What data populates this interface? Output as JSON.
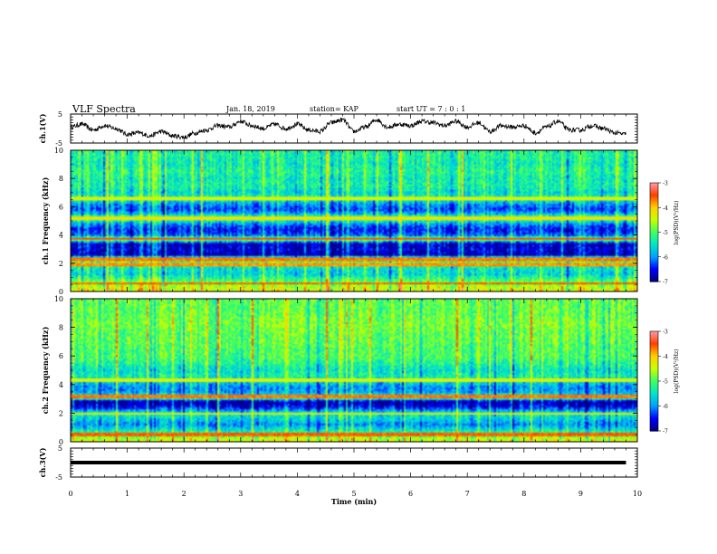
{
  "header": {
    "title": "VLF Spectra",
    "date": "Jan. 18, 2019",
    "station": "station= KAP",
    "start": "start UT =  7 : 0 : 1"
  },
  "colorbars": [
    {
      "label": "log(PSD)(V²/Hz)",
      "ticks": [
        {
          "label": "-3",
          "value": -3
        },
        {
          "label": "-4",
          "value": -4
        },
        {
          "label": "-5",
          "value": -5
        },
        {
          "label": "-6",
          "value": -6
        },
        {
          "label": "-7",
          "value": -7
        }
      ]
    },
    {
      "label": "log(PSD)(V²/Hz)",
      "ticks": [
        {
          "label": "-3",
          "value": -3
        },
        {
          "label": "-4",
          "value": -4
        },
        {
          "label": "-5",
          "value": -5
        },
        {
          "label": "-6",
          "value": -6
        },
        {
          "label": "-7",
          "value": -7
        }
      ]
    }
  ],
  "colors": {
    "colormap": [
      "#00007f",
      "#0000ff",
      "#00a0ff",
      "#00e5c8",
      "#40ff60",
      "#c8ff00",
      "#ffd000",
      "#ff4000",
      "#ff9aa8"
    ]
  },
  "chart_data": [
    {
      "type": "line",
      "panel": "ch1-waveform",
      "ylabel": "ch.1(V)",
      "ylim": [
        -5,
        5
      ],
      "yticks": [
        {
          "label": "5",
          "value": 5
        },
        {
          "label": "-5",
          "value": -5
        }
      ],
      "xlim": [
        0,
        10
      ],
      "series": [
        {
          "x": [
            0,
            0.2,
            0.4,
            0.6,
            0.8,
            1.0,
            1.2,
            1.4,
            1.6,
            1.8,
            2.0,
            2.2,
            2.4,
            2.6,
            2.8,
            3.0,
            3.2,
            3.4,
            3.6,
            3.8,
            4.0,
            4.2,
            4.4,
            4.6,
            4.8,
            5.0,
            5.2,
            5.4,
            5.6,
            5.8,
            6.0,
            6.2,
            6.4,
            6.6,
            6.8,
            7.0,
            7.2,
            7.4,
            7.6,
            7.8,
            8.0,
            8.2,
            8.4,
            8.6,
            8.8,
            9.0,
            9.2,
            9.4,
            9.6,
            9.8
          ],
          "y": [
            0.5,
            1.5,
            -0.5,
            1.0,
            0.0,
            -2.0,
            -1.5,
            -2.5,
            -1.0,
            -2.5,
            -3.0,
            -1.5,
            -0.5,
            1.0,
            0.5,
            2.5,
            1.0,
            0.0,
            1.5,
            0.0,
            1.5,
            -0.5,
            -1.0,
            2.0,
            3.0,
            -1.0,
            0.5,
            3.0,
            0.5,
            1.5,
            1.0,
            2.5,
            2.0,
            1.0,
            2.5,
            0.5,
            2.0,
            -1.0,
            1.0,
            0.5,
            1.0,
            -1.5,
            0.5,
            2.5,
            -0.5,
            -0.5,
            1.0,
            0.0,
            -1.5,
            -2.0
          ]
        }
      ]
    },
    {
      "type": "heatmap",
      "panel": "ch1-spectrogram",
      "ylabel": "ch.1 Frequency (kHz)",
      "ylim": [
        0,
        10
      ],
      "yticks": [
        {
          "label": "0",
          "value": 0
        },
        {
          "label": "2",
          "value": 2
        },
        {
          "label": "4",
          "value": 4
        },
        {
          "label": "6",
          "value": 6
        },
        {
          "label": "8",
          "value": 8
        },
        {
          "label": "10",
          "value": 10
        }
      ],
      "xlim": [
        0,
        10
      ],
      "zlim": [
        -7,
        -3
      ],
      "freq_levels": [
        {
          "f": 0.0,
          "z": -4.3
        },
        {
          "f": 0.4,
          "z": -4.6
        },
        {
          "f": 0.8,
          "z": -5.0
        },
        {
          "f": 1.2,
          "z": -5.6
        },
        {
          "f": 1.6,
          "z": -5.5
        },
        {
          "f": 2.0,
          "z": -5.2
        },
        {
          "f": 2.3,
          "z": -4.6
        },
        {
          "f": 2.6,
          "z": -6.8
        },
        {
          "f": 3.0,
          "z": -6.6
        },
        {
          "f": 3.4,
          "z": -6.8
        },
        {
          "f": 3.7,
          "z": -4.5
        },
        {
          "f": 4.0,
          "z": -6.2
        },
        {
          "f": 4.4,
          "z": -6.5
        },
        {
          "f": 4.8,
          "z": -6.0
        },
        {
          "f": 5.2,
          "z": -4.7
        },
        {
          "f": 5.5,
          "z": -5.8
        },
        {
          "f": 5.8,
          "z": -6.3
        },
        {
          "f": 6.2,
          "z": -6.0
        },
        {
          "f": 6.6,
          "z": -5.2
        },
        {
          "f": 7.0,
          "z": -5.6
        },
        {
          "f": 7.5,
          "z": -5.3
        },
        {
          "f": 8.0,
          "z": -5.4
        },
        {
          "f": 8.5,
          "z": -5.2
        },
        {
          "f": 9.0,
          "z": -5.4
        },
        {
          "f": 9.5,
          "z": -5.3
        },
        {
          "f": 10.0,
          "z": -5.3
        }
      ],
      "bands": [
        {
          "f": 0.55,
          "z": -3.6
        },
        {
          "f": 1.9,
          "z": -3.8
        },
        {
          "f": 2.3,
          "z": -3.7
        },
        {
          "f": 3.75,
          "z": -3.5
        },
        {
          "f": 5.2,
          "z": -4.2
        },
        {
          "f": 6.6,
          "z": -4.4
        }
      ],
      "events": [
        {
          "t": 0.65,
          "z": -4.0
        },
        {
          "t": 2.3,
          "z": -4.2
        },
        {
          "t": 4.5,
          "z": -3.9
        },
        {
          "t": 5.8,
          "z": -4.1
        },
        {
          "t": 6.3,
          "z": -3.8
        },
        {
          "t": 6.9,
          "z": -4.0
        }
      ]
    },
    {
      "type": "heatmap",
      "panel": "ch2-spectrogram",
      "ylabel": "ch.2 Frequency (kHz)",
      "ylim": [
        0,
        10
      ],
      "yticks": [
        {
          "label": "0",
          "value": 0
        },
        {
          "label": "2",
          "value": 2
        },
        {
          "label": "4",
          "value": 4
        },
        {
          "label": "6",
          "value": 6
        },
        {
          "label": "8",
          "value": 8
        },
        {
          "label": "10",
          "value": 10
        }
      ],
      "xlim": [
        0,
        10
      ],
      "zlim": [
        -7,
        -3
      ],
      "freq_levels": [
        {
          "f": 0.0,
          "z": -4.3
        },
        {
          "f": 0.4,
          "z": -4.8
        },
        {
          "f": 0.8,
          "z": -5.4
        },
        {
          "f": 1.2,
          "z": -6.0
        },
        {
          "f": 1.6,
          "z": -5.6
        },
        {
          "f": 2.0,
          "z": -5.4
        },
        {
          "f": 2.4,
          "z": -6.5
        },
        {
          "f": 2.8,
          "z": -6.9
        },
        {
          "f": 3.1,
          "z": -4.6
        },
        {
          "f": 3.4,
          "z": -5.9
        },
        {
          "f": 3.8,
          "z": -6.0
        },
        {
          "f": 4.2,
          "z": -5.6
        },
        {
          "f": 4.6,
          "z": -5.3
        },
        {
          "f": 5.0,
          "z": -5.5
        },
        {
          "f": 5.5,
          "z": -5.2
        },
        {
          "f": 6.0,
          "z": -5.0
        },
        {
          "f": 6.5,
          "z": -5.0
        },
        {
          "f": 7.0,
          "z": -4.9
        },
        {
          "f": 7.5,
          "z": -4.9
        },
        {
          "f": 8.0,
          "z": -4.8
        },
        {
          "f": 8.5,
          "z": -4.8
        },
        {
          "f": 9.0,
          "z": -4.9
        },
        {
          "f": 9.5,
          "z": -4.9
        },
        {
          "f": 10.0,
          "z": -4.9
        }
      ],
      "bands": [
        {
          "f": 0.5,
          "z": -3.6
        },
        {
          "f": 1.95,
          "z": -4.3
        },
        {
          "f": 3.15,
          "z": -3.7
        },
        {
          "f": 4.3,
          "z": -4.4
        }
      ],
      "events": [
        {
          "t": 0.8,
          "z": -4.0
        },
        {
          "t": 2.6,
          "z": -3.9
        },
        {
          "t": 3.2,
          "z": -4.1
        },
        {
          "t": 4.5,
          "z": -3.8
        },
        {
          "t": 6.8,
          "z": -4.0
        },
        {
          "t": 8.1,
          "z": -4.2
        }
      ]
    },
    {
      "type": "line",
      "panel": "ch3-waveform",
      "ylabel": "ch.3(V)",
      "ylim": [
        -5,
        5
      ],
      "yticks": [
        {
          "label": "5",
          "value": 5
        },
        {
          "label": "-5",
          "value": -5
        }
      ],
      "xlim": [
        0,
        10
      ],
      "series": [
        {
          "x": [
            0,
            9.8
          ],
          "y": [
            0,
            0
          ]
        }
      ]
    }
  ],
  "xaxis": {
    "label": "Time (min)",
    "ticks": [
      {
        "label": "0",
        "value": 0
      },
      {
        "label": "1",
        "value": 1
      },
      {
        "label": "2",
        "value": 2
      },
      {
        "label": "3",
        "value": 3
      },
      {
        "label": "4",
        "value": 4
      },
      {
        "label": "5",
        "value": 5
      },
      {
        "label": "6",
        "value": 6
      },
      {
        "label": "7",
        "value": 7
      },
      {
        "label": "8",
        "value": 8
      },
      {
        "label": "9",
        "value": 9
      },
      {
        "label": "10",
        "value": 10
      }
    ]
  }
}
